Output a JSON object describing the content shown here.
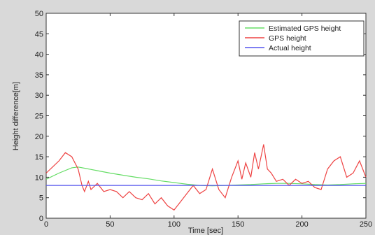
{
  "chart_data": {
    "type": "line",
    "title": "",
    "xlabel": "Time [sec]",
    "ylabel": "Height difference[m]",
    "xlim": [
      0,
      250
    ],
    "ylim": [
      0,
      50
    ],
    "xticks": [
      "0",
      "50",
      "100",
      "150",
      "200",
      "250"
    ],
    "yticks": [
      "0",
      "5",
      "10",
      "15",
      "20",
      "25",
      "30",
      "35",
      "40",
      "45",
      "50"
    ],
    "grid": false,
    "legend_position": "top-right",
    "series": [
      {
        "name": "Estimated GPS height",
        "color": "#66dd66",
        "x": [
          0,
          10,
          20,
          25,
          30,
          40,
          50,
          60,
          70,
          80,
          90,
          100,
          110,
          120,
          130,
          140,
          150,
          160,
          170,
          180,
          190,
          200,
          210,
          220,
          230,
          240,
          250
        ],
        "y": [
          9.5,
          11,
          12.3,
          12.5,
          12.2,
          11.6,
          11,
          10.5,
          10,
          9.6,
          9.1,
          8.7,
          8.3,
          8.0,
          7.9,
          8.0,
          8.1,
          8.2,
          8.4,
          8.5,
          8.5,
          8.4,
          8.2,
          8.1,
          8.2,
          8.4,
          8.5
        ]
      },
      {
        "name": "GPS height",
        "color": "#ee4444",
        "x": [
          0,
          5,
          10,
          15,
          20,
          25,
          28,
          30,
          33,
          35,
          40,
          45,
          50,
          55,
          60,
          65,
          70,
          75,
          80,
          85,
          90,
          95,
          100,
          105,
          110,
          115,
          120,
          125,
          130,
          135,
          140,
          145,
          150,
          153,
          156,
          160,
          163,
          166,
          170,
          173,
          176,
          180,
          185,
          190,
          195,
          200,
          205,
          210,
          215,
          220,
          225,
          230,
          235,
          240,
          245,
          250
        ],
        "y": [
          11,
          12.5,
          14,
          16,
          15,
          12,
          8,
          6.5,
          9,
          7,
          8.5,
          6.5,
          7,
          6.5,
          5,
          6.5,
          5,
          4.5,
          6,
          3.5,
          5,
          3,
          2,
          4,
          6,
          8,
          6,
          7,
          12,
          7,
          5,
          10,
          14,
          9.5,
          13.5,
          10,
          16,
          12,
          18,
          12,
          11,
          9,
          9.5,
          8,
          9.5,
          8.5,
          9,
          7.5,
          7,
          12,
          14,
          15,
          10,
          11,
          14,
          10
        ]
      },
      {
        "name": "Actual height",
        "color": "#5555ee",
        "x": [
          0,
          250
        ],
        "y": [
          8,
          8
        ]
      }
    ]
  }
}
